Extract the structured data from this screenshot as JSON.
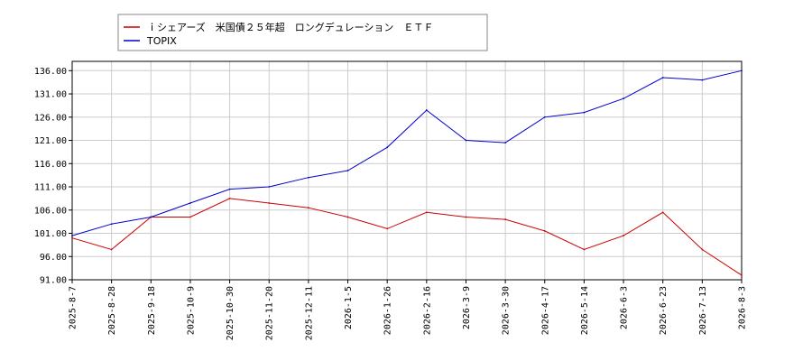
{
  "chart_data": {
    "type": "line",
    "x": [
      "2025-8-7",
      "2025-8-28",
      "2025-9-18",
      "2025-10-9",
      "2025-10-30",
      "2025-11-20",
      "2025-12-11",
      "2026-1-5",
      "2026-1-26",
      "2026-2-16",
      "2026-3-9",
      "2026-3-30",
      "2026-4-17",
      "2026-5-14",
      "2026-6-3",
      "2026-6-23",
      "2026-7-13",
      "2026-8-3"
    ],
    "ylim": [
      91.0,
      138.0
    ],
    "yticks": [
      "91.00",
      "96.00",
      "101.00",
      "106.00",
      "111.00",
      "116.00",
      "121.00",
      "126.00",
      "131.00",
      "136.00"
    ],
    "xticks": [
      "2025-8-7",
      "2025-8-28",
      "2025-9-18",
      "2025-10-9",
      "2025-10-30",
      "2025-11-20",
      "2025-12-11",
      "2026-1-5",
      "2026-1-26",
      "2026-2-16",
      "2026-3-9",
      "2026-3-30",
      "2026-4-17",
      "2026-5-14",
      "2026-6-3",
      "2026-6-23",
      "2026-7-13",
      "2026-8-3"
    ],
    "grid": true,
    "legend_position": "top-left",
    "series": [
      {
        "name": "ｉシェアーズ　米国債２５年超　ロングデュレーション　ＥＴＦ",
        "color": "#cc0000",
        "values": [
          100.0,
          97.5,
          104.5,
          104.5,
          108.5,
          107.5,
          106.5,
          104.5,
          102.0,
          105.5,
          104.5,
          104.0,
          101.5,
          97.5,
          100.5,
          105.5,
          97.5,
          92.0
        ]
      },
      {
        "name": "TOPIX",
        "color": "#0000cc",
        "values": [
          100.5,
          103.0,
          104.5,
          107.5,
          110.5,
          111.0,
          113.0,
          114.5,
          119.5,
          127.5,
          121.0,
          120.5,
          126.0,
          127.0,
          130.0,
          134.5,
          134.0,
          136.0
        ]
      }
    ]
  }
}
